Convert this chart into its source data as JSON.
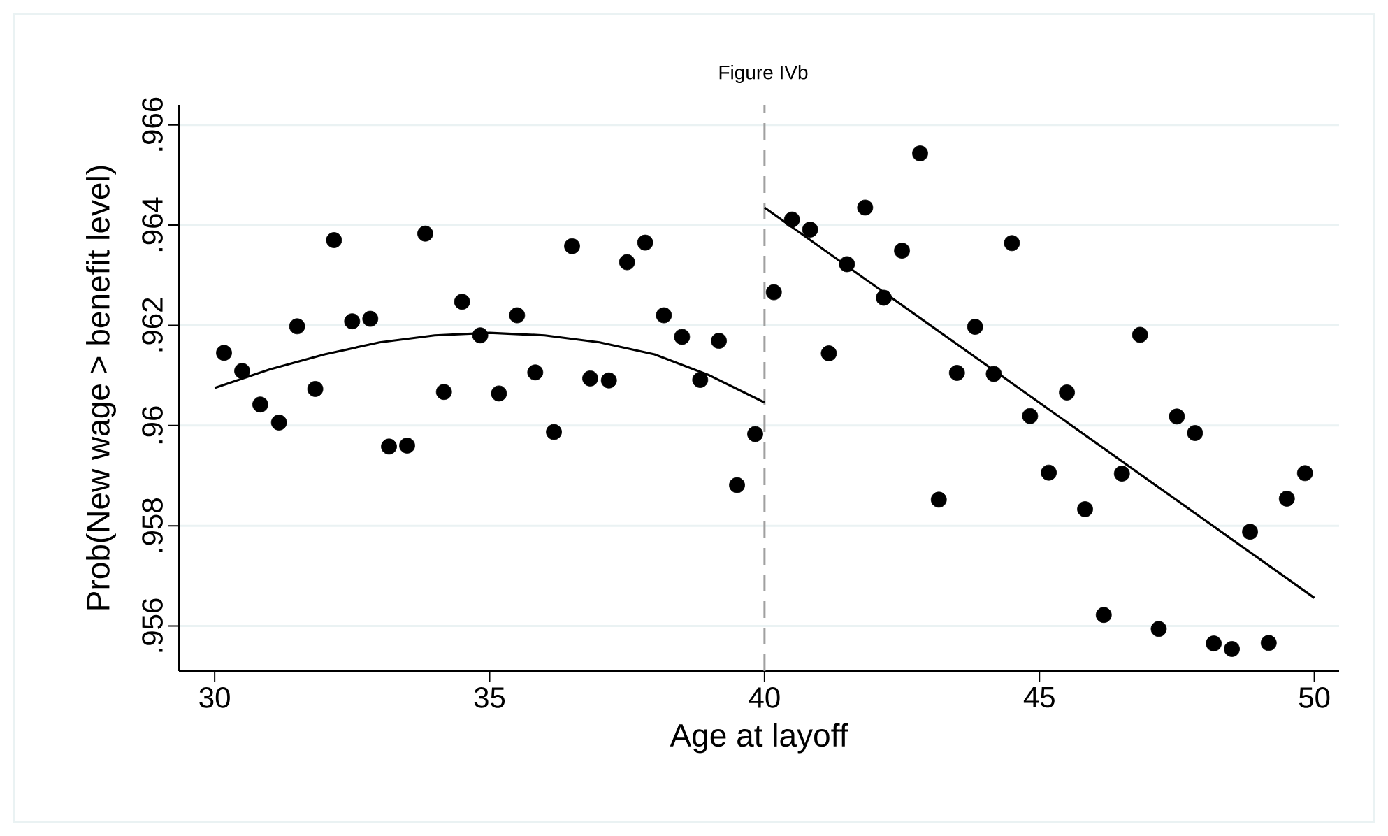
{
  "chart_data": {
    "type": "scatter",
    "title": "Figure IVb",
    "xlabel": "Age at layoff",
    "ylabel": "Prob(New wage > benefit level)",
    "xlim": [
      29.35,
      50.45
    ],
    "xticks": [
      30,
      35,
      40,
      45,
      50
    ],
    "ylim": [
      0.9551,
      0.9664
    ],
    "yticks": [
      {
        "value": 0.956,
        "label": ".956"
      },
      {
        "value": 0.958,
        "label": ".958"
      },
      {
        "value": 0.96,
        "label": ".96"
      },
      {
        "value": 0.962,
        "label": ".962"
      },
      {
        "value": 0.964,
        "label": ".964"
      },
      {
        "value": 0.966,
        "label": ".966"
      }
    ],
    "grid": "y",
    "ref_lines": [
      {
        "axis": "x",
        "value": 40,
        "color": "#a0a0a0",
        "line_style": "dashed"
      }
    ],
    "series": [
      {
        "marker": "circle",
        "color": "#000000",
        "x": [
          30.17,
          30.5,
          30.83,
          31.17,
          31.5,
          31.83,
          32.17,
          32.5,
          32.83,
          33.17,
          33.5,
          33.83,
          34.17,
          34.5,
          34.83,
          35.17,
          35.5,
          35.83,
          36.17,
          36.5,
          36.83,
          37.17,
          37.5,
          37.83,
          38.17,
          38.5,
          38.83,
          39.17,
          39.5,
          39.83
        ],
        "values": [
          0.96145,
          0.96109,
          0.96042,
          0.96006,
          0.96198,
          0.96073,
          0.9637,
          0.96208,
          0.96213,
          0.95958,
          0.9596,
          0.96383,
          0.96067,
          0.96247,
          0.9618,
          0.96064,
          0.9622,
          0.96106,
          0.95987,
          0.96358,
          0.96094,
          0.9609,
          0.96326,
          0.96365,
          0.9622,
          0.96177,
          0.96091,
          0.96169,
          0.95881,
          0.95983
        ]
      },
      {
        "marker": "circle",
        "color": "#000000",
        "x": [
          40.17,
          40.5,
          40.83,
          41.17,
          41.5,
          41.83,
          42.17,
          42.5,
          42.83,
          43.17,
          43.5,
          43.83,
          44.17,
          44.5,
          44.83,
          45.17,
          45.5,
          45.83,
          46.17,
          46.5,
          46.83,
          47.17,
          47.5,
          47.83,
          48.17,
          48.5,
          48.83,
          49.17,
          49.5,
          49.83
        ],
        "values": [
          0.96266,
          0.96411,
          0.96391,
          0.96144,
          0.96322,
          0.96435,
          0.96255,
          0.96349,
          0.96543,
          0.95852,
          0.96105,
          0.96197,
          0.96103,
          0.96364,
          0.96019,
          0.95906,
          0.96066,
          0.95833,
          0.95622,
          0.95904,
          0.96181,
          0.95594,
          0.96018,
          0.95985,
          0.95565,
          0.95554,
          0.95788,
          0.95566,
          0.95854,
          0.95905
        ]
      },
      {
        "type": "line",
        "marker": "none",
        "color": "#000000",
        "x": [
          30,
          31,
          32,
          33,
          34,
          35,
          36,
          37,
          38,
          39,
          40
        ],
        "values": [
          0.96075,
          0.96112,
          0.96142,
          0.96166,
          0.9618,
          0.96185,
          0.9618,
          0.96166,
          0.96142,
          0.961,
          0.96046
        ]
      },
      {
        "type": "line",
        "marker": "none",
        "color": "#000000",
        "x": [
          40,
          50
        ],
        "values": [
          0.96435,
          0.95656
        ]
      }
    ]
  }
}
